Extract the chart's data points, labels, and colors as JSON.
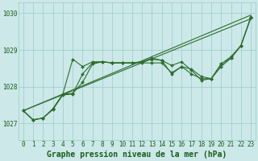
{
  "background_color": "#cce8e8",
  "plot_bg_color": "#cce8e8",
  "line_color": "#2d6e2d",
  "grid_color": "#99cccc",
  "xlabel": "Graphe pression niveau de la mer (hPa)",
  "xlabel_fontsize": 7.0,
  "ylim": [
    1026.55,
    1030.3
  ],
  "xlim": [
    -0.5,
    23.5
  ],
  "yticks": [
    1027,
    1028,
    1029,
    1030
  ],
  "xticks": [
    0,
    1,
    2,
    3,
    4,
    5,
    6,
    7,
    8,
    9,
    10,
    11,
    12,
    13,
    14,
    15,
    16,
    17,
    18,
    19,
    20,
    21,
    22,
    23
  ],
  "series": [
    {
      "name": "line1_straight",
      "x": [
        0,
        23
      ],
      "y": [
        1027.35,
        1029.95
      ],
      "has_markers": false
    },
    {
      "name": "line2_straight",
      "x": [
        0,
        23
      ],
      "y": [
        1027.35,
        1029.85
      ],
      "has_markers": false
    },
    {
      "name": "line3_curved_high",
      "x": [
        0,
        1,
        2,
        3,
        4,
        5,
        6,
        7,
        8,
        9,
        10,
        11,
        12,
        13,
        14,
        15,
        16,
        17,
        18,
        19,
        20,
        21,
        22,
        23
      ],
      "y": [
        1027.35,
        1027.1,
        1027.15,
        1027.4,
        1027.8,
        1028.75,
        1028.55,
        1028.68,
        1028.68,
        1028.65,
        1028.65,
        1028.65,
        1028.68,
        1028.78,
        1028.72,
        1028.58,
        1028.68,
        1028.45,
        1028.18,
        1028.22,
        1028.62,
        1028.82,
        1029.12,
        1029.9
      ],
      "has_markers": true
    },
    {
      "name": "line4_curved_low",
      "x": [
        0,
        1,
        2,
        3,
        4,
        5,
        6,
        7,
        8,
        9,
        10,
        11,
        12,
        13,
        14,
        15,
        16,
        17,
        18,
        19,
        20,
        21,
        22,
        23
      ],
      "y": [
        1027.35,
        1027.1,
        1027.15,
        1027.4,
        1027.8,
        1027.82,
        1028.12,
        1028.62,
        1028.68,
        1028.65,
        1028.65,
        1028.65,
        1028.65,
        1028.65,
        1028.65,
        1028.38,
        1028.55,
        1028.35,
        1028.22,
        1028.22,
        1028.55,
        1028.78,
        1029.12,
        1029.88
      ],
      "has_markers": true
    },
    {
      "name": "line5_mid",
      "x": [
        0,
        1,
        2,
        3,
        4,
        5,
        6,
        7,
        8,
        9,
        10,
        11,
        12,
        13,
        14,
        15,
        16,
        17,
        18,
        19,
        20,
        21,
        22,
        23
      ],
      "y": [
        1027.35,
        1027.1,
        1027.15,
        1027.38,
        1027.78,
        1027.8,
        1028.35,
        1028.65,
        1028.68,
        1028.65,
        1028.65,
        1028.65,
        1028.68,
        1028.75,
        1028.72,
        1028.35,
        1028.55,
        1028.48,
        1028.28,
        1028.22,
        1028.62,
        1028.78,
        1029.12,
        1029.88
      ],
      "has_markers": true
    }
  ],
  "marker": "D",
  "marker_size": 2.0,
  "linewidth": 0.8,
  "tick_fontsize": 5.5,
  "tick_color": "#1a5c1a",
  "xlabel_bold": true
}
